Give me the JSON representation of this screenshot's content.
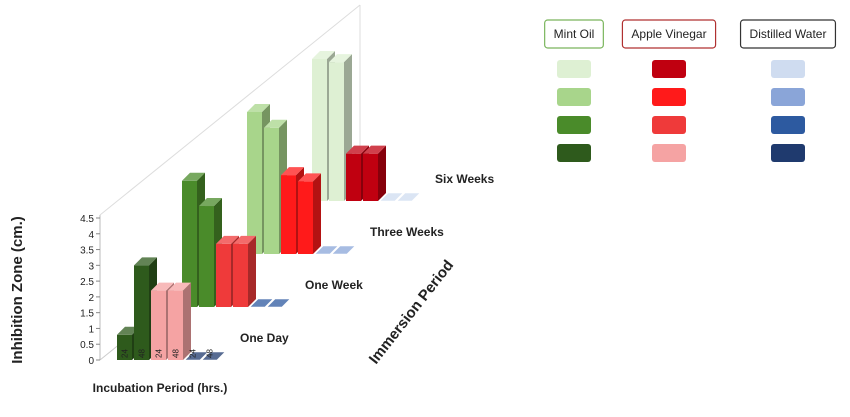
{
  "chart_data": {
    "type": "bar3d",
    "y_label": "Inhibition Zone (cm.)",
    "x_label": "Incubation Period (hrs.)",
    "z_label": "Immersion Period",
    "incubation": [
      "24",
      "48"
    ],
    "periods": [
      "One Day",
      "One Week",
      "Three Weeks",
      "Six Weeks"
    ],
    "ylim": [
      0,
      4.5
    ],
    "yticks": [
      0,
      0.5,
      1,
      1.5,
      2,
      2.5,
      3,
      3.5,
      4,
      4.5
    ],
    "series": [
      {
        "name": "Mint Oil",
        "border": "#7ab55c",
        "colors": [
          "#2e5a1c",
          "#4a8b2a",
          "#a8d58b",
          "#def0d3"
        ],
        "values": [
          [
            0.8,
            3.0
          ],
          [
            4.0,
            3.2
          ],
          [
            4.5,
            4.0
          ],
          [
            4.5,
            4.4
          ]
        ]
      },
      {
        "name": "Apple Vinegar",
        "border": "#b03030",
        "colors": [
          "#f5a3a3",
          "#ef3a3a",
          "#ff1a1a",
          "#c00010"
        ],
        "values": [
          [
            2.2,
            2.2
          ],
          [
            2.0,
            2.0
          ],
          [
            2.5,
            2.3
          ],
          [
            1.5,
            1.5
          ]
        ]
      },
      {
        "name": "Distilled Water",
        "border": "#333333",
        "colors": [
          "#1f3a6e",
          "#2d5aa0",
          "#8aa5d8",
          "#cfdcf0"
        ],
        "values": [
          [
            0,
            0
          ],
          [
            0,
            0
          ],
          [
            0,
            0
          ],
          [
            0,
            0
          ]
        ]
      }
    ]
  }
}
